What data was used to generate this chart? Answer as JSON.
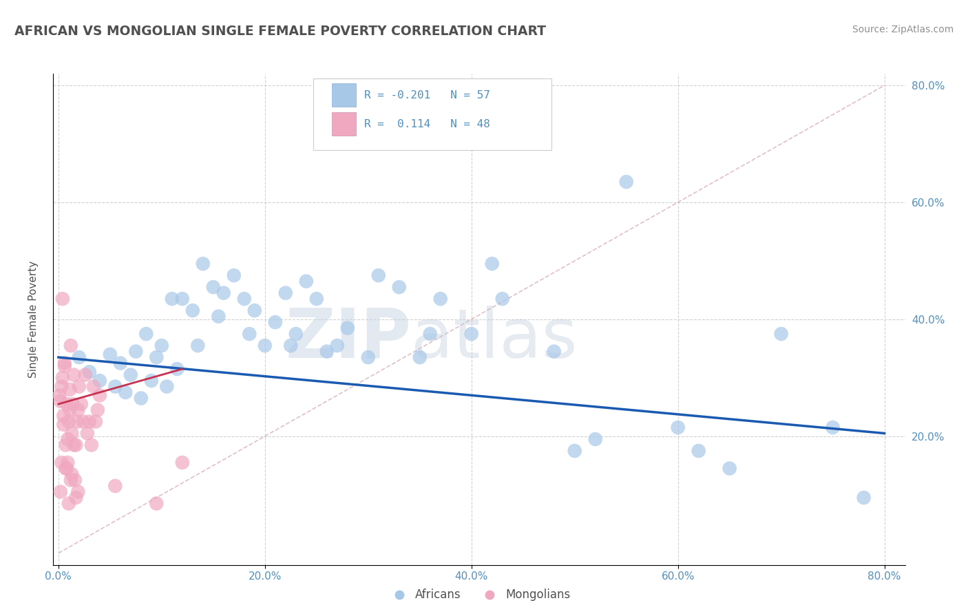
{
  "title": "AFRICAN VS MONGOLIAN SINGLE FEMALE POVERTY CORRELATION CHART",
  "source": "Source: ZipAtlas.com",
  "ylabel": "Single Female Poverty",
  "x_tick_labels": [
    "0.0%",
    "20.0%",
    "40.0%",
    "60.0%",
    "80.0%"
  ],
  "y_tick_labels_left": [],
  "y_tick_labels_right": [
    "20.0%",
    "40.0%",
    "60.0%",
    "80.0%"
  ],
  "x_ticks": [
    0.0,
    0.2,
    0.4,
    0.6,
    0.8
  ],
  "y_ticks": [
    0.2,
    0.4,
    0.6,
    0.8
  ],
  "xlim": [
    -0.005,
    0.82
  ],
  "ylim": [
    -0.02,
    0.82
  ],
  "legend_r_african": "-0.201",
  "legend_n_african": "57",
  "legend_r_mongolian": "0.114",
  "legend_n_mongolian": "48",
  "african_color": "#a8c8e8",
  "mongolian_color": "#f0a8c0",
  "african_line_color": "#1a5ab0",
  "mongolian_line_color": "#c83050",
  "diagonal_color": "#d8b0b8",
  "watermark_zip": "ZIP",
  "watermark_atlas": "atlas",
  "background_color": "#ffffff",
  "grid_color": "#cccccc",
  "title_color": "#505050",
  "axis_tick_color": "#5090c0",
  "legend_text_color": "#5090c0",
  "african_x": [
    0.02,
    0.03,
    0.04,
    0.05,
    0.055,
    0.06,
    0.065,
    0.07,
    0.075,
    0.08,
    0.085,
    0.09,
    0.095,
    0.1,
    0.105,
    0.11,
    0.115,
    0.12,
    0.13,
    0.135,
    0.14,
    0.15,
    0.155,
    0.16,
    0.17,
    0.18,
    0.185,
    0.19,
    0.2,
    0.21,
    0.22,
    0.225,
    0.23,
    0.24,
    0.25,
    0.26,
    0.27,
    0.28,
    0.3,
    0.31,
    0.33,
    0.35,
    0.36,
    0.37,
    0.4,
    0.42,
    0.43,
    0.48,
    0.5,
    0.52,
    0.55,
    0.6,
    0.62,
    0.65,
    0.7,
    0.75,
    0.78
  ],
  "african_y": [
    0.335,
    0.31,
    0.295,
    0.34,
    0.285,
    0.325,
    0.275,
    0.305,
    0.345,
    0.265,
    0.375,
    0.295,
    0.335,
    0.355,
    0.285,
    0.435,
    0.315,
    0.435,
    0.415,
    0.355,
    0.495,
    0.455,
    0.405,
    0.445,
    0.475,
    0.435,
    0.375,
    0.415,
    0.355,
    0.395,
    0.445,
    0.355,
    0.375,
    0.465,
    0.435,
    0.345,
    0.355,
    0.385,
    0.335,
    0.475,
    0.455,
    0.335,
    0.375,
    0.435,
    0.375,
    0.495,
    0.435,
    0.345,
    0.175,
    0.195,
    0.635,
    0.215,
    0.175,
    0.145,
    0.375,
    0.215,
    0.095
  ],
  "mongolian_x": [
    0.001,
    0.002,
    0.003,
    0.004,
    0.005,
    0.006,
    0.007,
    0.008,
    0.009,
    0.01,
    0.011,
    0.012,
    0.013,
    0.014,
    0.015,
    0.016,
    0.017,
    0.018,
    0.019,
    0.02,
    0.022,
    0.024,
    0.026,
    0.028,
    0.03,
    0.032,
    0.034,
    0.036,
    0.038,
    0.04,
    0.002,
    0.003,
    0.005,
    0.007,
    0.009,
    0.011,
    0.013,
    0.015,
    0.017,
    0.019,
    0.004,
    0.006,
    0.008,
    0.01,
    0.012,
    0.055,
    0.095,
    0.12
  ],
  "mongolian_y": [
    0.27,
    0.26,
    0.285,
    0.3,
    0.22,
    0.32,
    0.185,
    0.255,
    0.155,
    0.225,
    0.28,
    0.355,
    0.205,
    0.255,
    0.305,
    0.125,
    0.185,
    0.225,
    0.105,
    0.285,
    0.255,
    0.225,
    0.305,
    0.205,
    0.225,
    0.185,
    0.285,
    0.225,
    0.245,
    0.27,
    0.105,
    0.155,
    0.235,
    0.145,
    0.195,
    0.245,
    0.135,
    0.185,
    0.095,
    0.245,
    0.435,
    0.325,
    0.145,
    0.085,
    0.125,
    0.115,
    0.085,
    0.155
  ],
  "african_trend_x0": 0.0,
  "african_trend_x1": 0.8,
  "african_trend_y0": 0.335,
  "african_trend_y1": 0.205,
  "mongolian_trend_x0": 0.0,
  "mongolian_trend_x1": 0.12,
  "mongolian_trend_y0": 0.255,
  "mongolian_trend_y1": 0.315
}
